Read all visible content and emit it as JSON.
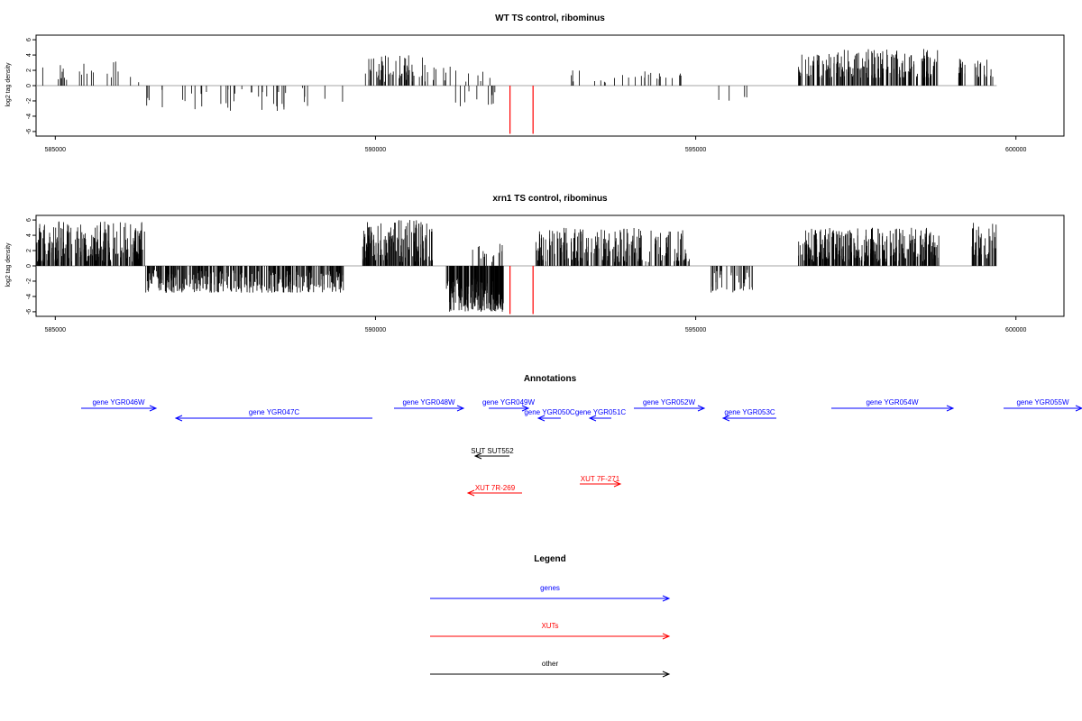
{
  "chart_data": [
    {
      "type": "bar",
      "title": "WT TS control, ribominus",
      "ylabel": "log2 tag density",
      "xlim": [
        584700,
        600750
      ],
      "ylim": [
        -6.6,
        6.6
      ],
      "x_ticks": [
        585000,
        590000,
        595000,
        600000
      ],
      "y_ticks": [
        6,
        4,
        2,
        0,
        -2,
        -4,
        -6
      ],
      "tick_labels_x": [
        "585000",
        "590000",
        "595000",
        "600000"
      ],
      "tick_labels_y": [
        "6",
        "4",
        "2",
        "0",
        "-2",
        "-4",
        "-6"
      ],
      "marker_color": "#ff0000",
      "markers": [
        {
          "x": 592100,
          "y": -6.3
        },
        {
          "x": 592460,
          "y": -6.3
        }
      ],
      "clusters": [
        {
          "x0": 584700,
          "x1": 585300,
          "min": 0.5,
          "max": 2.7,
          "density": 0.014
        },
        {
          "x0": 585300,
          "x1": 586000,
          "min": 0.8,
          "max": 3.6,
          "density": 0.016
        },
        {
          "x0": 586000,
          "x1": 586400,
          "min": 0.3,
          "max": 1.3,
          "density": 0.006
        },
        {
          "x0": 586400,
          "x1": 589500,
          "min": -3.3,
          "max": -0.3,
          "density": 0.013
        },
        {
          "x0": 589800,
          "x1": 590800,
          "min": 0.5,
          "max": 4.0,
          "density": 0.055
        },
        {
          "x0": 590800,
          "x1": 591300,
          "min": 0.6,
          "max": 2.6,
          "density": 0.018
        },
        {
          "x0": 591200,
          "x1": 592000,
          "min": -2.8,
          "max": -0.3,
          "density": 0.012
        },
        {
          "x0": 591300,
          "x1": 591900,
          "min": 0.5,
          "max": 2.0,
          "density": 0.01
        },
        {
          "x0": 593000,
          "x1": 594800,
          "min": 0.4,
          "max": 2.0,
          "density": 0.015
        },
        {
          "x0": 595300,
          "x1": 595800,
          "min": -2.0,
          "max": -0.5,
          "density": 0.008
        },
        {
          "x0": 596600,
          "x1": 598800,
          "min": 1.0,
          "max": 4.8,
          "density": 0.09
        },
        {
          "x0": 599100,
          "x1": 599700,
          "min": 1.0,
          "max": 3.8,
          "density": 0.05
        }
      ]
    },
    {
      "type": "bar",
      "title": "xrn1 TS control, ribominus",
      "ylabel": "log2 tag density",
      "xlim": [
        584700,
        600750
      ],
      "ylim": [
        -6.6,
        6.6
      ],
      "x_ticks": [
        585000,
        590000,
        595000,
        600000
      ],
      "y_ticks": [
        6,
        4,
        2,
        0,
        -2,
        -4,
        -6
      ],
      "tick_labels_x": [
        "585000",
        "590000",
        "595000",
        "600000"
      ],
      "tick_labels_y": [
        "6",
        "4",
        "2",
        "0",
        "-2",
        "-4",
        "-6"
      ],
      "marker_color": "#ff0000",
      "markers": [
        {
          "x": 592100,
          "y": -6.3
        },
        {
          "x": 592460,
          "y": -6.3
        }
      ],
      "clusters": [
        {
          "x0": 584700,
          "x1": 586400,
          "min": 0.5,
          "max": 6.0,
          "density": 0.13
        },
        {
          "x0": 586400,
          "x1": 589500,
          "min": -3.5,
          "max": -0.5,
          "density": 0.11
        },
        {
          "x0": 589800,
          "x1": 590900,
          "min": 0.5,
          "max": 6.0,
          "density": 0.13
        },
        {
          "x0": 591100,
          "x1": 592000,
          "min": -6.0,
          "max": -1.5,
          "density": 0.22
        },
        {
          "x0": 591500,
          "x1": 592000,
          "min": 0.5,
          "max": 3.0,
          "density": 0.03
        },
        {
          "x0": 592500,
          "x1": 594900,
          "min": 0.5,
          "max": 5.0,
          "density": 0.09
        },
        {
          "x0": 595200,
          "x1": 595900,
          "min": -3.5,
          "max": -0.5,
          "density": 0.05
        },
        {
          "x0": 596600,
          "x1": 598800,
          "min": 0.5,
          "max": 5.0,
          "density": 0.13
        },
        {
          "x0": 599300,
          "x1": 599700,
          "min": 1.0,
          "max": 5.8,
          "density": 0.1
        }
      ]
    }
  ],
  "annotations": {
    "title": "Annotations",
    "genes": [
      {
        "label": "gene YGR046W",
        "from": 90,
        "to": 173,
        "row": "upper",
        "dir": "right"
      },
      {
        "label": "gene YGR047C",
        "from": 195,
        "to": 413,
        "row": "lower",
        "dir": "left"
      },
      {
        "label": "gene YGR048W",
        "from": 437,
        "to": 514,
        "row": "upper",
        "dir": "right"
      },
      {
        "label": "gene YGR049W",
        "from": 542,
        "to": 586,
        "row": "upper",
        "dir": "right"
      },
      {
        "label": "gene YGR050C",
        "from": 597,
        "to": 622,
        "row": "lower",
        "dir": "left"
      },
      {
        "label": "gene YGR051C",
        "from": 654,
        "to": 678,
        "row": "lower",
        "dir": "left"
      },
      {
        "label": "gene YGR052W",
        "from": 703,
        "to": 781,
        "row": "upper",
        "dir": "right"
      },
      {
        "label": "gene YGR053C",
        "from": 802,
        "to": 861,
        "row": "lower",
        "dir": "left"
      },
      {
        "label": "gene YGR054W",
        "from": 922,
        "to": 1057,
        "row": "upper",
        "dir": "right"
      },
      {
        "label": "gene YGR055W",
        "from": 1113,
        "to": 1200,
        "row": "upper",
        "dir": "right"
      }
    ],
    "other": [
      {
        "label": "SUT SUT552",
        "from": 527,
        "to": 565,
        "dir": "left"
      }
    ],
    "xuts": [
      {
        "label": "XUT 7R-269",
        "from": 519,
        "to": 579,
        "dir": "left"
      },
      {
        "label": "XUT 7F-271",
        "from": 643,
        "to": 688,
        "dir": "right"
      }
    ]
  },
  "legend": {
    "title": "Legend",
    "items": [
      {
        "label": "genes",
        "color": "#0000ff"
      },
      {
        "label": "XUTs",
        "color": "#ff0000"
      },
      {
        "label": "other",
        "color": "#000000"
      }
    ]
  },
  "colors": {
    "genes": "#0000ff",
    "xuts": "#ff0000",
    "other": "#000000",
    "axis": "#000000",
    "zero_line": "#888888"
  }
}
